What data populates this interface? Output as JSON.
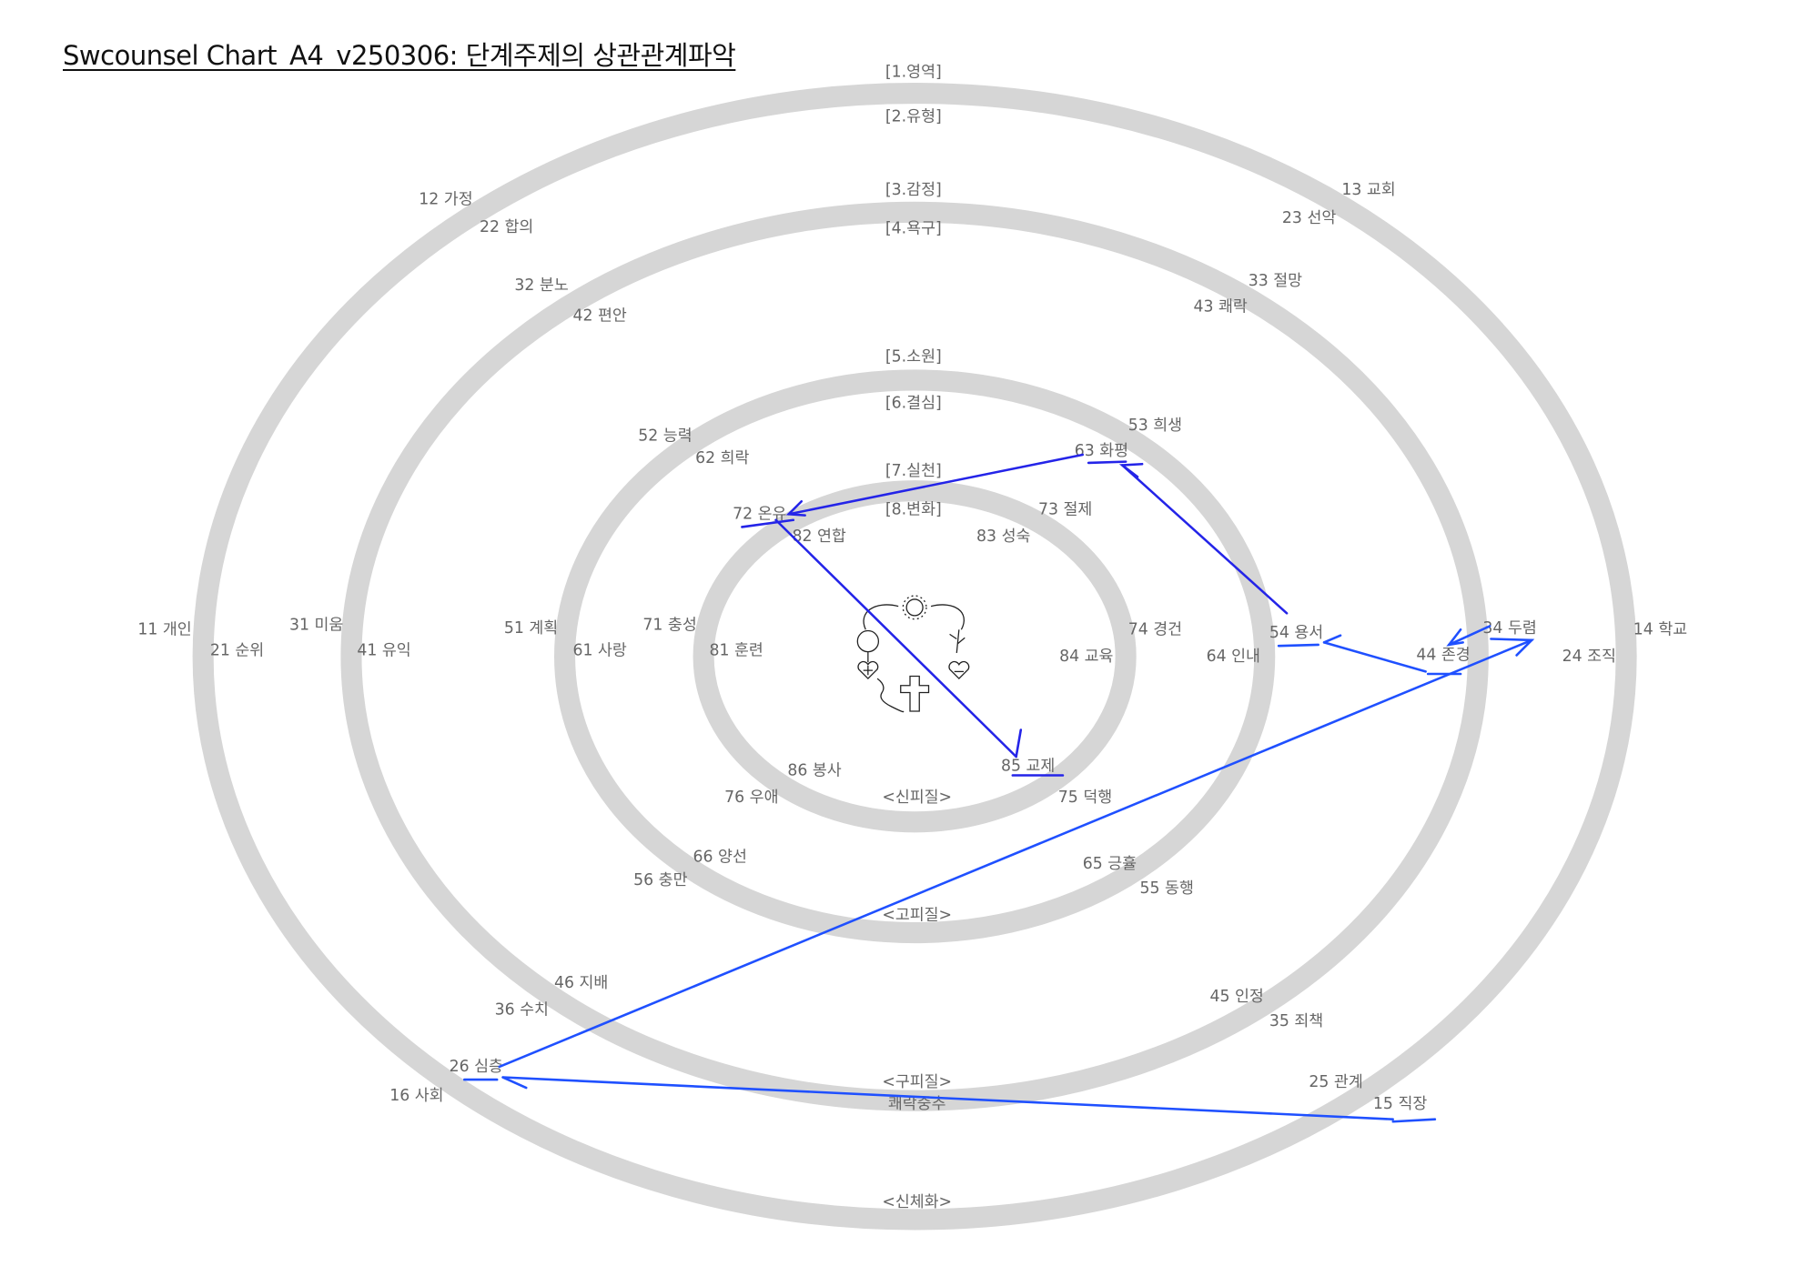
{
  "title": "Swcounsel Chart_A4_v250306: 단계주제의 상관관계파악",
  "stage_labels": [
    "[1.영역]",
    "[2.유형]",
    "[3.감정]",
    "[4.욕구]",
    "[5.소원]",
    "[6.결심]",
    "[7.실천]",
    "[8.변화]"
  ],
  "brain_labels": [
    "<신피질>",
    "<고피질>",
    "<구피질>",
    "쾌락중추",
    "<신체화>"
  ],
  "nodes": [
    "12 가정",
    "22 합의",
    "13 교회",
    "23 선악",
    "32 분노",
    "42 편안",
    "33 절망",
    "43 쾌락",
    "52 능력",
    "62 희락",
    "53 희생",
    "63 화평",
    "72 온유",
    "82 연합",
    "73 절제",
    "83 성숙",
    "11 개인",
    "21 순위",
    "31 미움",
    "41 유익",
    "51 계획",
    "61 사랑",
    "71 충성",
    "81 훈련",
    "74 경건",
    "84 교육",
    "64 인내",
    "54 용서",
    "44 존경",
    "34 두렴",
    "24 조직",
    "14 학교",
    "86 봉사",
    "85 교제",
    "76 우애",
    "75 덕행",
    "66 양선",
    "56 충만",
    "65 긍휼",
    "55 동행",
    "46 지배",
    "36 수치",
    "45 인정",
    "35 죄책",
    "26 심층",
    "16 사회",
    "25 관계",
    "15 직장"
  ],
  "connections": [
    {
      "from": "63 화평",
      "to": "72 온유"
    },
    {
      "from": "72 온유",
      "to": "85 교제"
    },
    {
      "from": "54 용서",
      "to": "63 화평"
    },
    {
      "from": "44 존경",
      "to": "54 용서"
    },
    {
      "from": "34 두렴",
      "to": "44 존경"
    },
    {
      "from": "26 심층",
      "to": "34 두렴"
    },
    {
      "from": "15 직장",
      "to": "26 심층"
    }
  ],
  "colors": {
    "ring": "#d6d6d6",
    "arrow": "#1f3cf5",
    "label": "#666666"
  },
  "center_icon": "gospel-cycle-diagram"
}
